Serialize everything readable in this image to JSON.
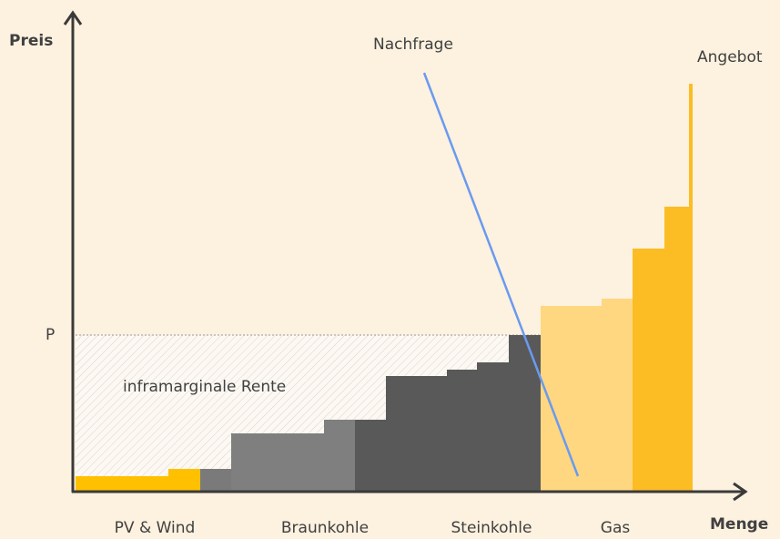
{
  "axes": {
    "y_label": "Preis",
    "x_label": "Menge",
    "price_marker": "P"
  },
  "curves": {
    "demand": "Nachfrage",
    "supply": "Angebot"
  },
  "area_label": "inframarginale Rente",
  "categories": [
    "PV & Wind",
    "Braunkohle",
    "Steinkohle",
    "Gas"
  ]
}
